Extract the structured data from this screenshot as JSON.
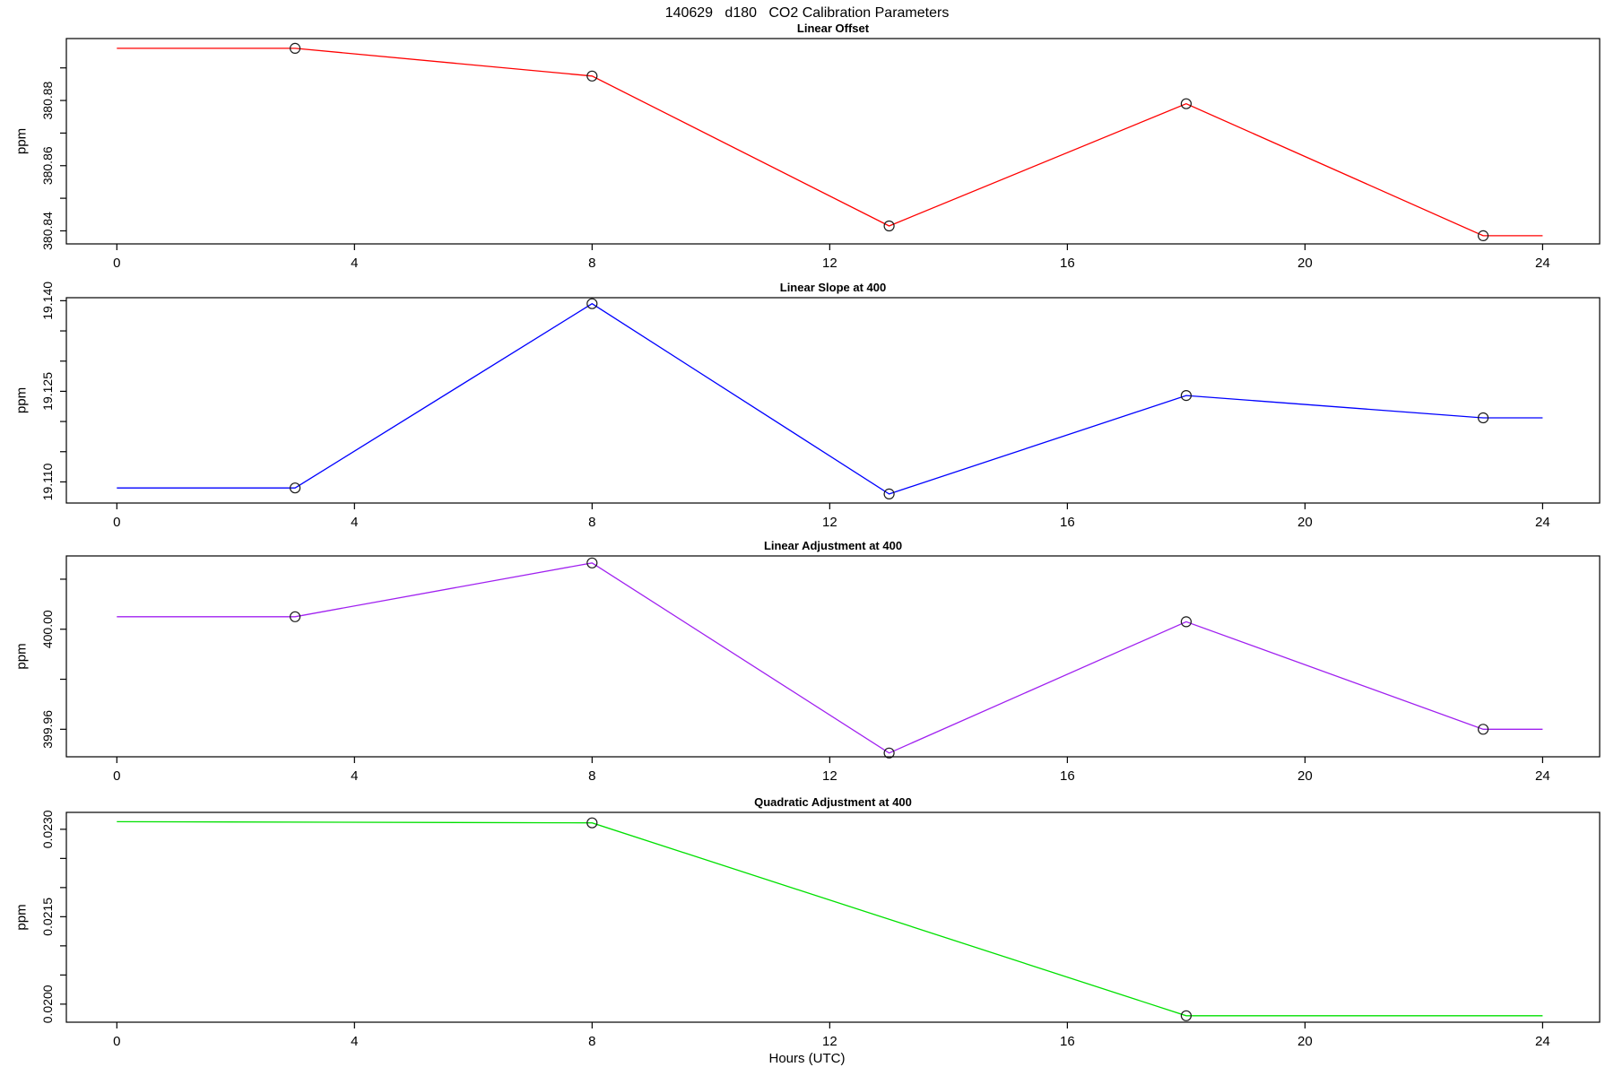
{
  "header": {
    "title": "140629   d180   CO2 Calibration Parameters"
  },
  "x_axis": {
    "label": "Hours (UTC)",
    "ticks": [
      0,
      4,
      8,
      12,
      16,
      20,
      24
    ],
    "tick_labels": [
      "0",
      "4",
      "8",
      "12",
      "16",
      "20",
      "24"
    ],
    "xlim": [
      -0.85,
      24.96
    ]
  },
  "style": {
    "axis_color": "#000000",
    "marker_color": "#1a1a1a",
    "background": "#ffffff"
  },
  "chart_data": [
    {
      "type": "line",
      "title": "Linear Offset",
      "ylabel": "ppm",
      "color": "#ff0000",
      "x": [
        0,
        3,
        8,
        13,
        18,
        23,
        24
      ],
      "y": [
        380.896,
        380.896,
        380.8875,
        380.8415,
        380.879,
        380.8385,
        380.8385
      ],
      "marker_x": [
        3,
        8,
        13,
        18,
        23
      ],
      "ylim": [
        380.836,
        380.899
      ],
      "y_ticks": [
        {
          "v": 380.84,
          "l": "380.84"
        },
        {
          "v": 380.85,
          "l": ""
        },
        {
          "v": 380.86,
          "l": "380.86"
        },
        {
          "v": 380.87,
          "l": ""
        },
        {
          "v": 380.88,
          "l": "380.88"
        },
        {
          "v": 380.89,
          "l": ""
        }
      ]
    },
    {
      "type": "line",
      "title": "Linear Slope at 400",
      "ylabel": "ppm",
      "color": "#0000ff",
      "x": [
        0,
        3,
        8,
        13,
        18,
        23,
        24
      ],
      "y": [
        19.109,
        19.109,
        19.1395,
        19.108,
        19.1243,
        19.1206,
        19.1206
      ],
      "marker_x": [
        3,
        8,
        13,
        18,
        23
      ],
      "ylim": [
        19.1065,
        19.1405
      ],
      "y_ticks": [
        {
          "v": 19.11,
          "l": "19.110"
        },
        {
          "v": 19.115,
          "l": ""
        },
        {
          "v": 19.12,
          "l": ""
        },
        {
          "v": 19.125,
          "l": "19.125"
        },
        {
          "v": 19.13,
          "l": ""
        },
        {
          "v": 19.135,
          "l": ""
        },
        {
          "v": 19.14,
          "l": "19.140"
        }
      ]
    },
    {
      "type": "line",
      "title": "Linear Adjustment at 400",
      "ylabel": "ppm",
      "color": "#a020f0",
      "x": [
        0,
        3,
        8,
        13,
        18,
        23,
        24
      ],
      "y": [
        400.005,
        400.005,
        400.0265,
        399.9505,
        400.003,
        399.96,
        399.96
      ],
      "marker_x": [
        3,
        8,
        13,
        18,
        23
      ],
      "ylim": [
        399.949,
        400.0293
      ],
      "y_ticks": [
        {
          "v": 399.96,
          "l": "399.96"
        },
        {
          "v": 399.98,
          "l": ""
        },
        {
          "v": 400.0,
          "l": "400.00"
        },
        {
          "v": 400.02,
          "l": ""
        }
      ]
    },
    {
      "type": "line",
      "title": "Quadratic Adjustment at 400",
      "ylabel": "ppm",
      "color": "#00e000",
      "x": [
        0,
        8,
        18,
        24
      ],
      "y": [
        0.02313,
        0.02311,
        0.0198,
        0.0198
      ],
      "marker_x": [
        8,
        18
      ],
      "ylim": [
        0.01969,
        0.02329
      ],
      "y_ticks": [
        {
          "v": 0.02,
          "l": "0.0200"
        },
        {
          "v": 0.0205,
          "l": ""
        },
        {
          "v": 0.021,
          "l": ""
        },
        {
          "v": 0.0215,
          "l": "0.0215"
        },
        {
          "v": 0.022,
          "l": ""
        },
        {
          "v": 0.0225,
          "l": ""
        },
        {
          "v": 0.023,
          "l": "0.0230"
        }
      ]
    }
  ]
}
